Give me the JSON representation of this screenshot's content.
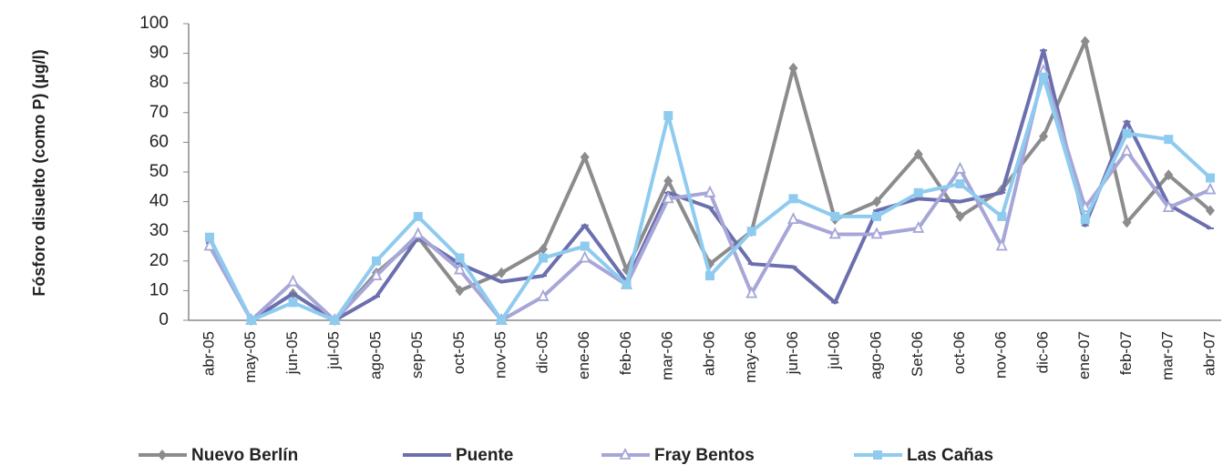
{
  "chart_data": {
    "type": "line",
    "y_label": "Fósforo disuelto (como P) (µg/l)",
    "categories": [
      "abr-05",
      "may-05",
      "jun-05",
      "jul-05",
      "ago-05",
      "sep-05",
      "oct-05",
      "nov-05",
      "dic-05",
      "ene-06",
      "feb-06",
      "mar-06",
      "abr-06",
      "may-06",
      "jun-06",
      "jul-06",
      "ago-06",
      "Set-06",
      "oct-06",
      "nov-06",
      "dic-06",
      "ene-07",
      "feb-07",
      "mar-07",
      "abr-07"
    ],
    "series": [
      {
        "name": "Nuevo Berlín",
        "color": "#8c8c8f",
        "marker": "diamond",
        "values": [
          27,
          0,
          9,
          0,
          16,
          28,
          10,
          16,
          24,
          55,
          17,
          47,
          19,
          30,
          85,
          34,
          40,
          56,
          35,
          44,
          62,
          94,
          33,
          49,
          37
        ]
      },
      {
        "name": "Puente",
        "color": "#6b6fad",
        "marker": "none",
        "values": [
          26,
          0,
          9,
          0,
          8,
          28,
          19,
          13,
          15,
          32,
          13,
          43,
          38,
          19,
          18,
          6,
          37,
          41,
          40,
          43,
          91,
          32,
          67,
          39,
          31
        ]
      },
      {
        "name": "Fray Bentos",
        "color": "#a6a6d8",
        "marker": "triangle",
        "values": [
          25,
          0,
          13,
          0,
          15,
          29,
          17,
          0,
          8,
          21,
          12,
          41,
          43,
          9,
          34,
          29,
          29,
          31,
          51,
          25,
          84,
          38,
          57,
          38,
          44
        ]
      },
      {
        "name": "Las Cañas",
        "color": "#8ecbef",
        "marker": "square",
        "values": [
          28,
          0,
          6,
          0,
          20,
          35,
          21,
          0,
          21,
          25,
          12,
          69,
          15,
          30,
          41,
          35,
          35,
          43,
          46,
          35,
          82,
          34,
          63,
          61,
          48
        ]
      }
    ],
    "ylim": [
      0,
      100
    ],
    "yticks": [
      0,
      10,
      20,
      30,
      40,
      50,
      60,
      70,
      80,
      90,
      100
    ],
    "grid": false,
    "legend": "bottom"
  }
}
